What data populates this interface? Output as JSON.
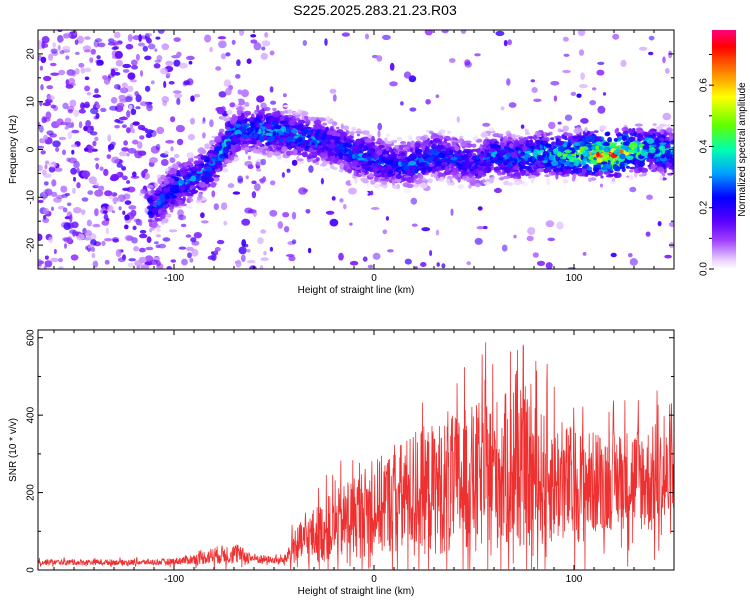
{
  "title": "S225.2025.283.21.23.R03",
  "chart_data": [
    {
      "type": "heatmap",
      "xlabel": "Height of straight line (km)",
      "ylabel": "Frequency (Hz)",
      "xlim": [
        -168,
        150
      ],
      "ylim": [
        -25,
        25
      ],
      "xticks": [
        -100,
        0,
        100
      ],
      "yticks": [
        -20,
        -10,
        0,
        10,
        20
      ],
      "colorbar": {
        "label": "Normalized spectral amplitude",
        "range": [
          0.0,
          0.78
        ],
        "ticks": [
          0.0,
          0.2,
          0.4,
          0.6
        ],
        "tick_labels": [
          "0.0",
          "0.2",
          "0.4",
          "0.6"
        ]
      },
      "ridge": {
        "x": [
          -110,
          -100,
          -90,
          -80,
          -73,
          -68,
          -60,
          -50,
          -40,
          -30,
          -20,
          -10,
          0,
          10,
          20,
          30,
          40,
          50,
          60,
          70,
          80,
          90,
          100,
          110,
          120,
          130,
          140,
          150
        ],
        "y": [
          -12,
          -8,
          -6,
          -3,
          2,
          4,
          4,
          4,
          3,
          2,
          1,
          -1,
          -2,
          -3,
          -3,
          -1,
          -2,
          -3,
          -1,
          -2,
          -1,
          -1,
          -1,
          -1,
          -1,
          0,
          0,
          -1
        ],
        "amp": [
          0.25,
          0.3,
          0.3,
          0.3,
          0.35,
          0.3,
          0.3,
          0.35,
          0.3,
          0.3,
          0.25,
          0.3,
          0.3,
          0.25,
          0.3,
          0.3,
          0.25,
          0.25,
          0.3,
          0.3,
          0.35,
          0.4,
          0.45,
          0.6,
          0.7,
          0.5,
          0.4,
          0.35
        ]
      }
    },
    {
      "type": "line",
      "xlabel": "Height of straight line (km)",
      "ylabel": "SNR (10 * v/v)",
      "xlim": [
        -168,
        150
      ],
      "ylim": [
        0,
        620
      ],
      "xticks": [
        -100,
        0,
        100
      ],
      "yticks": [
        0,
        200,
        400,
        600
      ],
      "color": "#ee3030",
      "envelope": {
        "x": [
          -168,
          -110,
          -100,
          -90,
          -80,
          -70,
          -60,
          -50,
          -45,
          -40,
          -30,
          -20,
          -10,
          0,
          10,
          20,
          30,
          40,
          50,
          60,
          70,
          80,
          90,
          100,
          110,
          120,
          130,
          140,
          150
        ],
        "mean": [
          20,
          20,
          22,
          28,
          38,
          42,
          30,
          25,
          25,
          60,
          90,
          110,
          140,
          160,
          180,
          200,
          210,
          220,
          240,
          250,
          260,
          240,
          230,
          220,
          225,
          230,
          240,
          230,
          230
        ],
        "spread": [
          8,
          8,
          10,
          15,
          25,
          30,
          15,
          10,
          12,
          50,
          80,
          100,
          120,
          140,
          150,
          180,
          190,
          200,
          210,
          220,
          230,
          210,
          180,
          170,
          150,
          140,
          150,
          160,
          160
        ]
      }
    }
  ]
}
